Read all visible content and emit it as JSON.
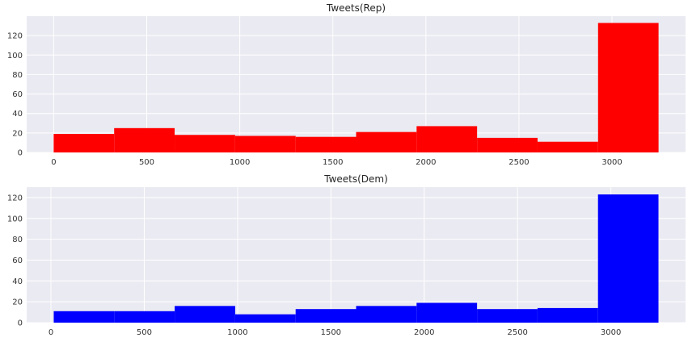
{
  "chart_data": [
    {
      "type": "bar",
      "title": "Tweets(Rep)",
      "xlabel": "",
      "ylabel": "",
      "bins": [
        {
          "x0": 0,
          "x1": 325,
          "count": 19
        },
        {
          "x0": 325,
          "x1": 650,
          "count": 25
        },
        {
          "x0": 650,
          "x1": 975,
          "count": 18
        },
        {
          "x0": 975,
          "x1": 1300,
          "count": 17
        },
        {
          "x0": 1300,
          "x1": 1625,
          "count": 16
        },
        {
          "x0": 1625,
          "x1": 1950,
          "count": 21
        },
        {
          "x0": 1950,
          "x1": 2275,
          "count": 27
        },
        {
          "x0": 2275,
          "x1": 2600,
          "count": 15
        },
        {
          "x0": 2600,
          "x1": 2925,
          "count": 11
        },
        {
          "x0": 2925,
          "x1": 3250,
          "count": 133
        }
      ],
      "xlim": [
        -145,
        3395
      ],
      "ylim": [
        0,
        140
      ],
      "xticks": [
        0,
        500,
        1000,
        1500,
        2000,
        2500,
        3000
      ],
      "yticks": [
        0,
        20,
        40,
        60,
        80,
        100,
        120
      ],
      "color": "#ff0000",
      "grid": true
    },
    {
      "type": "bar",
      "title": "Tweets(Dem)",
      "xlabel": "",
      "ylabel": "",
      "bins": [
        {
          "x0": 15,
          "x1": 339,
          "count": 11
        },
        {
          "x0": 339,
          "x1": 663,
          "count": 11
        },
        {
          "x0": 663,
          "x1": 987,
          "count": 16
        },
        {
          "x0": 987,
          "x1": 1311,
          "count": 8
        },
        {
          "x0": 1311,
          "x1": 1635,
          "count": 13
        },
        {
          "x0": 1635,
          "x1": 1959,
          "count": 16
        },
        {
          "x0": 1959,
          "x1": 2283,
          "count": 19
        },
        {
          "x0": 2283,
          "x1": 2607,
          "count": 13
        },
        {
          "x0": 2607,
          "x1": 2931,
          "count": 14
        },
        {
          "x0": 2931,
          "x1": 3255,
          "count": 123
        }
      ],
      "xlim": [
        -130,
        3400
      ],
      "ylim": [
        0,
        130
      ],
      "xticks": [
        0,
        500,
        1000,
        1500,
        2000,
        2500,
        3000
      ],
      "yticks": [
        0,
        20,
        40,
        60,
        80,
        100,
        120
      ],
      "color": "#0000ff",
      "grid": true
    }
  ]
}
